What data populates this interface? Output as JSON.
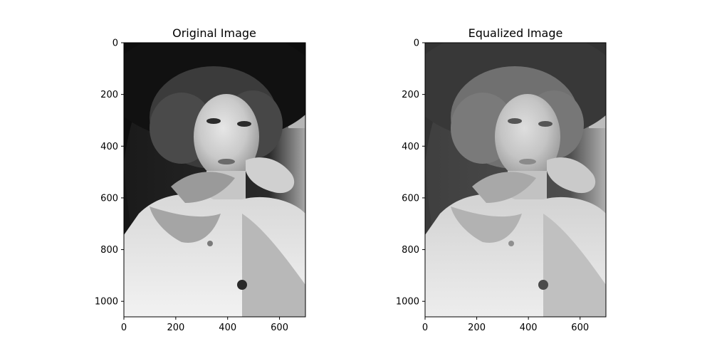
{
  "figure": {
    "panels": [
      {
        "id": "original",
        "title": "Original Image",
        "image_content": "grayscale vintage portrait photograph of a woman wearing a large dark hat, curled hair, and an ornate jeweled choker necklace, resting her cheek on her hand",
        "x_range": [
          0,
          700
        ],
        "y_range": [
          0,
          1060
        ],
        "x_ticks": [
          0,
          200,
          400,
          600
        ],
        "y_ticks": [
          0,
          200,
          400,
          600,
          800,
          1000
        ],
        "contrast": "high"
      },
      {
        "id": "equalized",
        "title": "Equalized Image",
        "image_content": "same portrait after histogram equalization, with lifted shadows and lower overall contrast",
        "x_range": [
          0,
          700
        ],
        "y_range": [
          0,
          1060
        ],
        "x_ticks": [
          0,
          200,
          400,
          600
        ],
        "y_ticks": [
          0,
          200,
          400,
          600,
          800,
          1000
        ],
        "contrast": "equalized"
      }
    ]
  }
}
